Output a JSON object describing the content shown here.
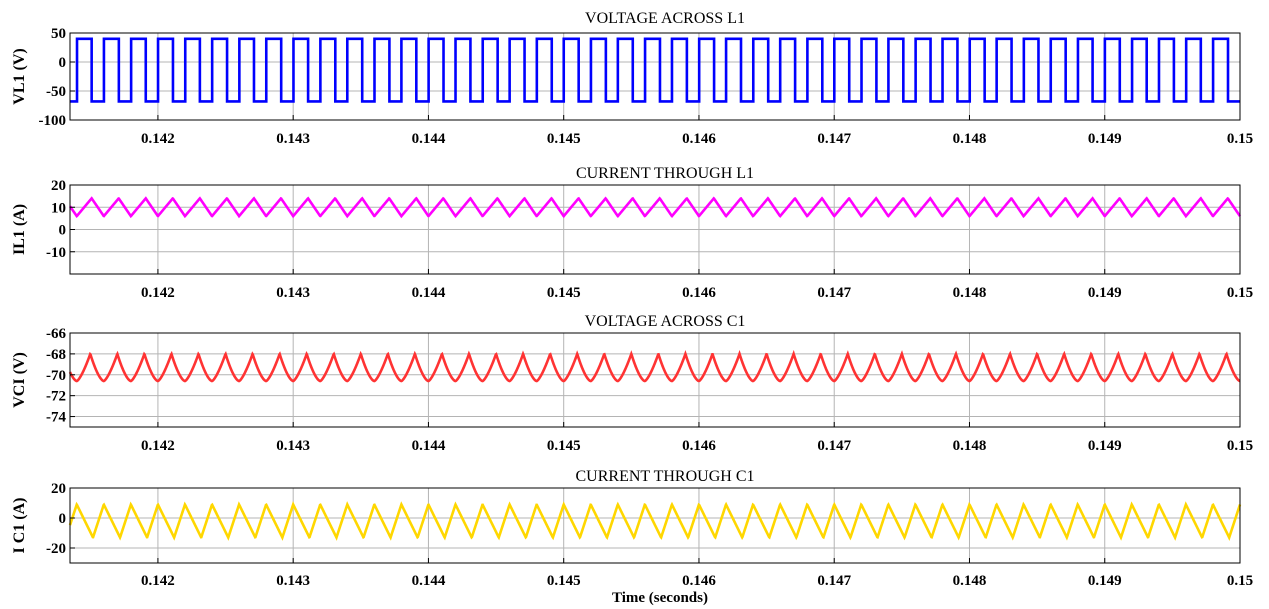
{
  "figure": {
    "xlabel": "Time (seconds)"
  },
  "chart_data": [
    {
      "type": "line",
      "title": "VOLTAGE ACROSS L1",
      "ylabel": "VL1 (V)",
      "xlim": [
        0.14135,
        0.15
      ],
      "ylim": [
        -100,
        50
      ],
      "x_ticks": [
        0.142,
        0.143,
        0.144,
        0.145,
        0.146,
        0.147,
        0.148,
        0.149,
        0.15
      ],
      "x_tick_labels": [
        "0.142",
        "0.143",
        "0.144",
        "0.145",
        "0.146",
        "0.147",
        "0.148",
        "0.149",
        "0.15"
      ],
      "y_ticks": [
        -100,
        -50,
        0,
        50
      ],
      "y_tick_labels": [
        "-100",
        "-50",
        "0",
        "50"
      ],
      "grid": true,
      "waveform": "square",
      "period": 0.0002,
      "series": [
        {
          "color": "#0000ff",
          "high": 40,
          "low": -68,
          "duty": 0.55,
          "phase": 0.0
        }
      ]
    },
    {
      "type": "line",
      "title": "CURRENT THROUGH L1",
      "ylabel": "IL1 (A)",
      "xlim": [
        0.14135,
        0.15
      ],
      "ylim": [
        -20,
        20
      ],
      "x_ticks": [
        0.142,
        0.143,
        0.144,
        0.145,
        0.146,
        0.147,
        0.148,
        0.149,
        0.15
      ],
      "x_tick_labels": [
        "0.142",
        "0.143",
        "0.144",
        "0.145",
        "0.146",
        "0.147",
        "0.148",
        "0.149",
        "0.15"
      ],
      "y_ticks": [
        -10,
        0,
        10,
        20
      ],
      "y_tick_labels": [
        "-10",
        "0",
        "10",
        "20"
      ],
      "grid": true,
      "waveform": "triangle",
      "period": 0.0002,
      "series": [
        {
          "color": "#ff00ff",
          "high": 14,
          "low": 6,
          "duty": 0.55,
          "phase": 0.0
        }
      ]
    },
    {
      "type": "line",
      "title": "VOLTAGE ACROSS C1",
      "ylabel": "VCI (V)",
      "xlim": [
        0.14135,
        0.15
      ],
      "ylim": [
        -75,
        -66
      ],
      "x_ticks": [
        0.142,
        0.143,
        0.144,
        0.145,
        0.146,
        0.147,
        0.148,
        0.149,
        0.15
      ],
      "x_tick_labels": [
        "0.142",
        "0.143",
        "0.144",
        "0.145",
        "0.146",
        "0.147",
        "0.148",
        "0.149",
        "0.15"
      ],
      "y_ticks": [
        -74,
        -72,
        -70,
        -68,
        -66
      ],
      "y_tick_labels": [
        "-74",
        "-72",
        "-70",
        "-68",
        "-66"
      ],
      "grid": true,
      "waveform": "scallop",
      "period": 0.0002,
      "series": [
        {
          "color": "#ff3333",
          "high": -68,
          "low": -70.6,
          "duty": 0.5,
          "phase": 0.0
        }
      ]
    },
    {
      "type": "line",
      "title": "CURRENT THROUGH C1",
      "ylabel": "I C1 (A)",
      "xlim": [
        0.14135,
        0.15
      ],
      "ylim": [
        -30,
        20
      ],
      "x_ticks": [
        0.142,
        0.143,
        0.144,
        0.145,
        0.146,
        0.147,
        0.148,
        0.149,
        0.15
      ],
      "x_tick_labels": [
        "0.142",
        "0.143",
        "0.144",
        "0.145",
        "0.146",
        "0.147",
        "0.148",
        "0.149",
        "0.15"
      ],
      "y_ticks": [
        -20,
        0,
        20
      ],
      "y_tick_labels": [
        "-20",
        "0",
        "20"
      ],
      "grid": true,
      "waveform": "sawtooth",
      "period": 0.0002,
      "series": [
        {
          "color": "#ffd700",
          "high": 9,
          "low": -13,
          "duty": 0.6,
          "phase": 0.0
        }
      ]
    }
  ]
}
